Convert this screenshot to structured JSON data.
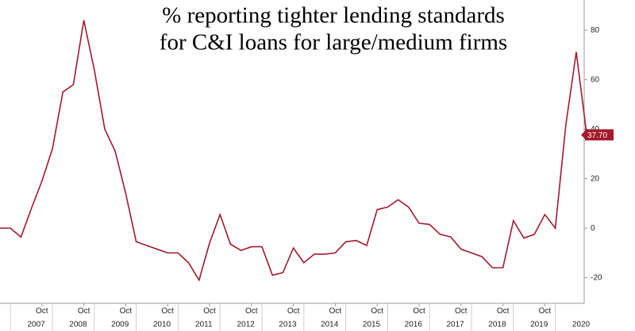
{
  "chart_data": {
    "type": "line",
    "title": [
      "% reporting tighter lending standards",
      "for C&I loans for large/medium firms"
    ],
    "categories": [
      null,
      null,
      null,
      null,
      "Oct",
      null,
      null,
      null,
      "Oct",
      null,
      null,
      null,
      "Oct",
      null,
      null,
      null,
      "Oct",
      null,
      null,
      null,
      "Oct",
      null,
      null,
      null,
      "Oct",
      null,
      null,
      null,
      "Oct",
      null,
      null,
      null,
      "Oct",
      null,
      null,
      null,
      "Oct",
      null,
      null,
      null,
      "Oct",
      null,
      null,
      null,
      "Oct",
      null,
      null,
      null,
      "Oct",
      null,
      null,
      null,
      "Oct",
      null,
      null,
      null,
      null
    ],
    "years": [
      "2007",
      "2008",
      "2009",
      "2010",
      "2011",
      "2012",
      "2013",
      "2014",
      "2015",
      "2016",
      "2017",
      "2018",
      "2019",
      "2020"
    ],
    "series": [
      {
        "name": "% reporting tighter lending standards",
        "color": "#a3192b",
        "values": [
          0,
          0,
          -3.6,
          8,
          19,
          32,
          55,
          58,
          84,
          64,
          40,
          31,
          14,
          -5.5,
          -7,
          -8.5,
          -10,
          -10,
          -14,
          -21,
          -6,
          5.5,
          -6.5,
          -9,
          -7.5,
          -7.5,
          -19,
          -18,
          -8,
          -14,
          -10.5,
          -10.5,
          -10,
          -5.5,
          -5,
          -7,
          7.5,
          8.5,
          11.5,
          8.5,
          2,
          1.5,
          -2.5,
          -3.5,
          -8.5,
          -10,
          -11.5,
          -16,
          -16,
          3,
          -4,
          -2.5,
          5.5,
          0,
          41.5,
          71.2,
          37.7
        ],
        "value_labels": [
          null,
          null,
          null,
          null,
          null,
          null,
          null,
          null,
          null,
          null,
          null,
          null,
          null,
          null,
          null,
          null,
          null,
          null,
          null,
          null,
          null,
          null,
          null,
          null,
          null,
          null,
          null,
          null,
          null,
          null,
          null,
          null,
          null,
          null,
          null,
          null,
          null,
          null,
          null,
          null,
          null,
          null,
          null,
          null,
          null,
          null,
          null,
          null,
          null,
          null,
          null,
          null,
          null,
          null,
          null,
          null,
          "37.70"
        ]
      }
    ],
    "ylim": [
      -32.6,
      92.2
    ],
    "yticks": [
      -20,
      0,
      20,
      40,
      60,
      80
    ]
  }
}
